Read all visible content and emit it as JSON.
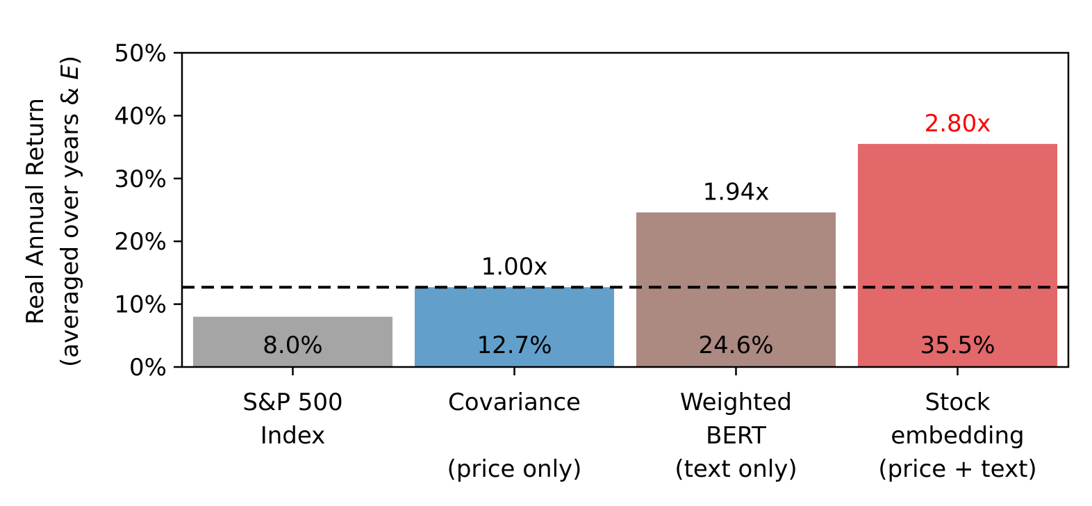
{
  "chart_data": {
    "type": "bar",
    "ylabel_line1": "Real Annual Return",
    "ylabel_line2_prefix": "(averaged over years & ",
    "ylabel_line2_italic": "E",
    "ylabel_line2_suffix": ")",
    "ylim": [
      0,
      50
    ],
    "yticks": [
      0,
      10,
      20,
      30,
      40,
      50
    ],
    "ytick_labels": [
      "0%",
      "10%",
      "20%",
      "30%",
      "40%",
      "50%"
    ],
    "baseline_value": 12.7,
    "bars": [
      {
        "category": [
          "S&P 500",
          "Index",
          ""
        ],
        "value": 8.0,
        "value_label": "8.0%",
        "ratio_label": "",
        "color": "#a5a5a5",
        "ratio_color": "#000000"
      },
      {
        "category": [
          "Covariance",
          "",
          "(price only)"
        ],
        "value": 12.7,
        "value_label": "12.7%",
        "ratio_label": "1.00x",
        "color": "#62a0cb",
        "ratio_color": "#000000"
      },
      {
        "category": [
          "Weighted",
          "BERT",
          "(text only)"
        ],
        "value": 24.6,
        "value_label": "24.6%",
        "ratio_label": "1.94x",
        "color": "#ac8981",
        "ratio_color": "#000000"
      },
      {
        "category": [
          "Stock",
          "embedding",
          "(price + text)"
        ],
        "value": 35.5,
        "value_label": "35.5%",
        "ratio_label": "2.80x",
        "color": "#e2686a",
        "ratio_color": "#ff0000"
      }
    ]
  }
}
